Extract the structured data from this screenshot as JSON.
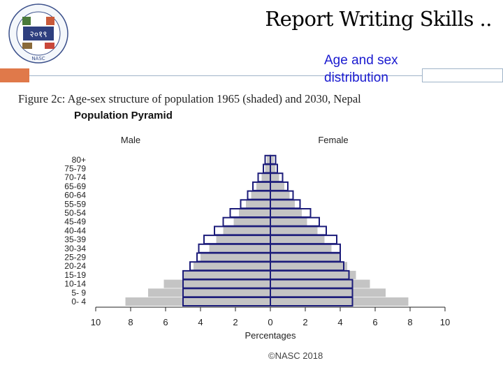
{
  "header": {
    "title": "Report Writing Skills ..",
    "subtitle": "Age and sex distribution",
    "logo_text": "NASC",
    "logo_number": "२०१९"
  },
  "figure_title": "Figure 2c: Age-sex structure of population 1965 (shaded) and 2030, Nepal",
  "pyramid_label": "Population Pyramid",
  "footer": "©NASC 2018",
  "colors": {
    "accent": "#e0794a",
    "shaded": "#c4c4c4",
    "outline": "#1c1c7a",
    "subtitle": "#1a1ad0"
  },
  "chart_data": {
    "type": "bar",
    "orientation": "horizontal-pyramid",
    "xlabel": "Percentages",
    "left_label": "Male",
    "right_label": "Female",
    "xlim": [
      -10,
      10
    ],
    "x_ticks": [
      -10,
      -8,
      -6,
      -4,
      -2,
      0,
      2,
      4,
      6,
      8,
      10
    ],
    "x_tick_labels": [
      "10",
      "8",
      "6",
      "4",
      "2",
      "0",
      "2",
      "4",
      "6",
      "8",
      "10"
    ],
    "categories": [
      "0- 4",
      "5- 9",
      "10-14",
      "15-19",
      "20-24",
      "25-29",
      "30-34",
      "35-39",
      "40-44",
      "45-49",
      "50-54",
      "55-59",
      "60-64",
      "65-69",
      "70-74",
      "75-79",
      "80+"
    ],
    "series": [
      {
        "name": "1965",
        "style": "shaded",
        "male": [
          8.3,
          7.0,
          6.1,
          5.0,
          4.4,
          4.0,
          3.5,
          3.1,
          2.7,
          2.1,
          1.8,
          1.4,
          1.1,
          0.8,
          0.5,
          0.3,
          0.2
        ],
        "female": [
          7.9,
          6.6,
          5.7,
          4.9,
          4.4,
          4.0,
          3.5,
          3.1,
          2.7,
          2.1,
          1.8,
          1.4,
          1.1,
          0.8,
          0.5,
          0.3,
          0.2
        ]
      },
      {
        "name": "2030",
        "style": "outline",
        "male": [
          5.0,
          5.0,
          5.0,
          5.0,
          4.6,
          4.2,
          4.1,
          3.8,
          3.2,
          2.7,
          2.3,
          1.7,
          1.3,
          1.0,
          0.7,
          0.4,
          0.3
        ],
        "female": [
          4.7,
          4.7,
          4.7,
          4.5,
          4.2,
          4.0,
          4.0,
          3.8,
          3.2,
          2.8,
          2.3,
          1.7,
          1.3,
          1.0,
          0.7,
          0.4,
          0.3
        ]
      }
    ]
  }
}
